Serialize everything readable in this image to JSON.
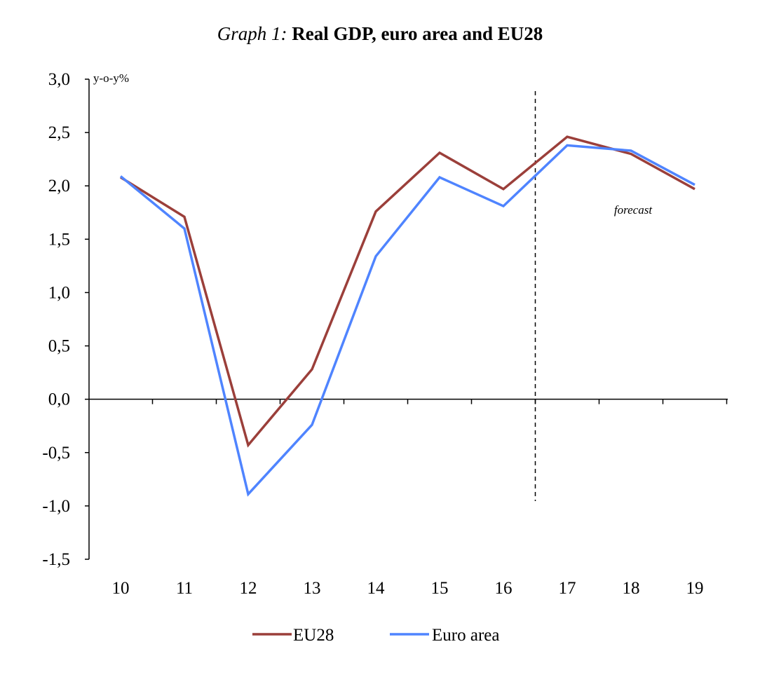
{
  "chart_data": {
    "type": "line",
    "title_prefix": "Graph 1:",
    "title": "Real GDP, euro area and EU28",
    "unit_label": "y-o-y%",
    "categories": [
      "10",
      "11",
      "12",
      "13",
      "14",
      "15",
      "16",
      "17",
      "18",
      "19"
    ],
    "series": [
      {
        "name": "EU28",
        "color": "#9B3F3A",
        "values": [
          2.08,
          1.71,
          -0.43,
          0.28,
          1.76,
          2.31,
          1.97,
          2.46,
          2.3,
          1.97
        ]
      },
      {
        "name": "Euro area",
        "color": "#4F84FF",
        "values": [
          2.09,
          1.6,
          -0.89,
          -0.24,
          1.34,
          2.08,
          1.81,
          2.38,
          2.33,
          2.01
        ]
      }
    ],
    "ylim": [
      -1.5,
      3.0
    ],
    "yticks": [
      3.0,
      2.5,
      2.0,
      1.5,
      1.0,
      0.5,
      0.0,
      -0.5,
      -1.0,
      -1.5
    ],
    "ytick_labels": [
      "3,0",
      "2,5",
      "2,0",
      "1,5",
      "1,0",
      "0,5",
      "0,0",
      "-0,5",
      "-1,0",
      "-1,5"
    ],
    "forecast_divider_after": "16",
    "annotation": "forecast",
    "legend_position": "bottom-center",
    "grid": false
  }
}
